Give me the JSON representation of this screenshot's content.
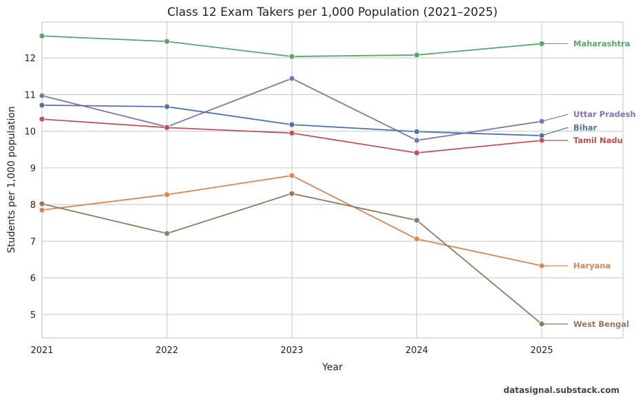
{
  "chart_data": {
    "type": "line",
    "title": "Class 12 Exam Takers per 1,000 Population (2021–2025)",
    "xlabel": "Year",
    "ylabel": "Students per 1,000 population",
    "x": [
      2021,
      2022,
      2023,
      2024,
      2025
    ],
    "xticks": [
      "2021",
      "2022",
      "2023",
      "2024",
      "2025"
    ],
    "yticks": [
      5,
      6,
      7,
      8,
      9,
      10,
      11,
      12
    ],
    "xlim": [
      2021,
      2025.65
    ],
    "ylim": [
      4.36,
      12.98
    ],
    "grid": true,
    "legend": "direct-labels-right",
    "series": [
      {
        "name": "Maharashtra",
        "color": "#55a868",
        "values": [
          12.6,
          12.45,
          12.04,
          12.08,
          12.39
        ],
        "label_value": 12.39
      },
      {
        "name": "Uttar Pradesh",
        "color": "#8172b3",
        "values": [
          10.97,
          10.12,
          11.44,
          9.75,
          10.27
        ],
        "label_value": 10.46
      },
      {
        "name": "Bihar",
        "color": "#4c72b0",
        "values": [
          10.71,
          10.67,
          10.18,
          9.99,
          9.88
        ],
        "label_value": 10.1
      },
      {
        "name": "Tamil Nadu",
        "color": "#c44e52",
        "values": [
          10.33,
          10.1,
          9.95,
          9.41,
          9.75
        ],
        "label_value": 9.75
      },
      {
        "name": "Haryana",
        "color": "#dd8452",
        "values": [
          7.85,
          8.27,
          8.79,
          7.06,
          6.33
        ],
        "label_value": 6.33
      },
      {
        "name": "West Bengal",
        "color": "#937860",
        "values": [
          8.02,
          7.21,
          8.3,
          7.57,
          4.74
        ],
        "label_value": 4.74
      }
    ]
  },
  "footer": "datasignal.substack.com"
}
